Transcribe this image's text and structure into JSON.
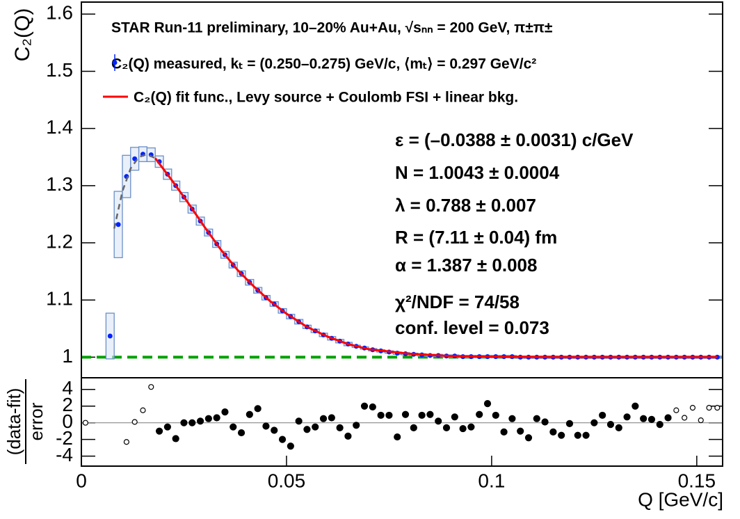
{
  "chart_data": [
    {
      "type": "scatter",
      "title": "STAR Run-11 preliminary, 10–20% Au+Au, √sₙₙ = 200 GeV, π±π±",
      "ylabel": "C₂(Q)",
      "xlim": [
        0,
        0.1563
      ],
      "ylim": [
        0.964,
        1.621
      ],
      "yticks": [
        1,
        1.1,
        1.2,
        1.3,
        1.4,
        1.5,
        1.6
      ],
      "reference": {
        "value": 1,
        "color": "#00a000"
      },
      "annotations": [
        "ε = (–0.0388 ± 0.0031) c/GeV",
        "N = 1.0043 ± 0.0004",
        "λ = 0.788 ± 0.007",
        "R = (7.11 ± 0.04) fm",
        "α = 1.387 ± 0.008",
        "χ²/NDF = 74/58",
        "conf. level = 0.073"
      ],
      "series": [
        {
          "name": "C₂(Q) measured, kₜ = (0.250–0.275) GeV/c, ⟨mₜ⟩ = 0.297 GeV/c²",
          "color": "#0022ff",
          "box_color": "#6a8fc8",
          "x": [
            0.007,
            0.009,
            0.011,
            0.013,
            0.015,
            0.017,
            0.019,
            0.021,
            0.023,
            0.025,
            0.027,
            0.029,
            0.031,
            0.033,
            0.035,
            0.037,
            0.039,
            0.041,
            0.043,
            0.045,
            0.047,
            0.049,
            0.051,
            0.053,
            0.055,
            0.057,
            0.059,
            0.061,
            0.063,
            0.065,
            0.067,
            0.069,
            0.071,
            0.073,
            0.075,
            0.077,
            0.079,
            0.081,
            0.083,
            0.085,
            0.087,
            0.089,
            0.091,
            0.093,
            0.095,
            0.097,
            0.099,
            0.101,
            0.103,
            0.105,
            0.107,
            0.109,
            0.111,
            0.113,
            0.115,
            0.117,
            0.119,
            0.121,
            0.123,
            0.125,
            0.127,
            0.129,
            0.131,
            0.133,
            0.135,
            0.137,
            0.139,
            0.141,
            0.143,
            0.145,
            0.147,
            0.149,
            0.151,
            0.153,
            0.155
          ],
          "values": [
            1.037,
            1.232,
            1.316,
            1.347,
            1.355,
            1.354,
            1.342,
            1.32,
            1.3,
            1.28,
            1.259,
            1.238,
            1.218,
            1.198,
            1.179,
            1.161,
            1.146,
            1.131,
            1.117,
            1.104,
            1.093,
            1.081,
            1.071,
            1.062,
            1.053,
            1.046,
            1.039,
            1.033,
            1.028,
            1.023,
            1.019,
            1.016,
            1.013,
            1.011,
            1.009,
            1.007,
            1.006,
            1.005,
            1.004,
            1.003,
            1.003,
            1.002,
            1.002,
            1.001,
            1.001,
            1.001,
            1.001,
            1.001,
            1.001,
            1.001,
            1,
            1,
            1,
            1,
            1,
            1,
            1,
            1,
            1,
            1,
            1,
            1,
            1,
            1,
            1,
            1,
            1,
            1,
            1,
            1,
            1,
            1,
            1,
            1,
            1
          ],
          "syst_errors": [
            0.04,
            0.058,
            0.037,
            0.02,
            0.013,
            0.012,
            0.01,
            0.009,
            0.008,
            0.008,
            0.007,
            0.007,
            0.006,
            0.006,
            0.006,
            0.005,
            0.005,
            0.005,
            0.005,
            0.004,
            0.004,
            0.004,
            0.004,
            0.004,
            0.003,
            0.003,
            0.003,
            0.003,
            0.003,
            0.003,
            0.002,
            0.002,
            0.002,
            0.002,
            0.002,
            0.002,
            0.002,
            0.002,
            0.002,
            0.002,
            0.002,
            0.002,
            0.002,
            0.002,
            0.002,
            0.002,
            0.002,
            0.002,
            0.002,
            0.002,
            0.002,
            0.002,
            0.002,
            0.002,
            0.002,
            0.002,
            0.002,
            0.002,
            0.002,
            0.002,
            0.002,
            0.002,
            0.002,
            0.002,
            0.002,
            0.002,
            0.002,
            0.002,
            0.002,
            0.002,
            0.002,
            0.002,
            0.002,
            0.002,
            0.002
          ]
        },
        {
          "name": "C₂(Q) fit func., Levy source + Coulomb FSI + linear bkg.",
          "color": "#ff0000",
          "x": [
            0.018,
            0.022,
            0.026,
            0.03,
            0.034,
            0.038,
            0.042,
            0.046,
            0.05,
            0.055,
            0.06,
            0.065,
            0.07,
            0.08,
            0.09,
            0.1,
            0.12,
            0.155
          ],
          "values": [
            1.348,
            1.31,
            1.27,
            1.228,
            1.188,
            1.153,
            1.124,
            1.098,
            1.076,
            1.053,
            1.036,
            1.023,
            1.014,
            1.006,
            1.002,
            1.001,
            1,
            1
          ]
        },
        {
          "color": "#666666",
          "dashed": true,
          "x": [
            0.008,
            0.01,
            0.012,
            0.014,
            0.016,
            0.018
          ],
          "values": [
            1.225,
            1.29,
            1.33,
            1.35,
            1.355,
            1.348
          ]
        }
      ]
    },
    {
      "type": "scatter",
      "ylabel": [
        "(data-fit)",
        "error"
      ],
      "xlabel": "Q [GeV/c]",
      "xlim": [
        0,
        0.1563
      ],
      "ylim": [
        -5.2,
        5.4
      ],
      "xticks": [
        0,
        0.05,
        0.1,
        0.15
      ],
      "yticks": [
        -4,
        -2,
        0,
        2,
        4
      ],
      "reference": {
        "value": 0,
        "color": "#888888"
      },
      "color": "#000000",
      "x": [
        0.001,
        0.011,
        0.013,
        0.015,
        0.017,
        0.019,
        0.021,
        0.023,
        0.025,
        0.027,
        0.029,
        0.031,
        0.033,
        0.035,
        0.037,
        0.039,
        0.041,
        0.043,
        0.045,
        0.047,
        0.049,
        0.051,
        0.053,
        0.055,
        0.057,
        0.059,
        0.061,
        0.063,
        0.065,
        0.067,
        0.069,
        0.071,
        0.073,
        0.075,
        0.077,
        0.079,
        0.081,
        0.083,
        0.085,
        0.087,
        0.089,
        0.091,
        0.093,
        0.095,
        0.097,
        0.099,
        0.101,
        0.103,
        0.105,
        0.107,
        0.109,
        0.111,
        0.113,
        0.115,
        0.117,
        0.119,
        0.121,
        0.123,
        0.125,
        0.127,
        0.129,
        0.131,
        0.133,
        0.135,
        0.137,
        0.139,
        0.141,
        0.143,
        0.145,
        0.147,
        0.149,
        0.151,
        0.153,
        0.155
      ],
      "values": [
        0,
        -2.3,
        0.1,
        1.5,
        4.3,
        -1.0,
        -0.5,
        -1.9,
        0,
        0,
        0.2,
        0.5,
        0.6,
        1.3,
        -0.5,
        -1.2,
        1.0,
        1.7,
        -0.4,
        -0.9,
        -2.0,
        -2.8,
        0.2,
        -0.8,
        -0.5,
        0.5,
        0.6,
        -0.6,
        -1.6,
        -0.3,
        2.0,
        1.9,
        0.9,
        0.9,
        -1.7,
        1.0,
        -0.6,
        0.9,
        1.0,
        0.2,
        -0.6,
        0.7,
        -0.7,
        -0.5,
        1.0,
        2.3,
        0.9,
        -1.1,
        0.5,
        -1.0,
        -1.8,
        0.5,
        0.1,
        -1.1,
        -1.5,
        -0.1,
        -1.5,
        -1.5,
        0,
        0.9,
        -0.2,
        -0.6,
        0.7,
        2.0,
        0.5,
        0.4,
        -0.2,
        0.6,
        1.5,
        0.6,
        1.8,
        0.3,
        1.8,
        1.8
      ],
      "open": [
        true,
        true,
        true,
        true,
        true,
        false,
        false,
        false,
        false,
        false,
        false,
        false,
        false,
        false,
        false,
        false,
        false,
        false,
        false,
        false,
        false,
        false,
        false,
        false,
        false,
        false,
        false,
        false,
        false,
        false,
        false,
        false,
        false,
        false,
        false,
        false,
        false,
        false,
        false,
        false,
        false,
        false,
        false,
        false,
        false,
        false,
        false,
        false,
        false,
        false,
        false,
        false,
        false,
        false,
        false,
        false,
        false,
        false,
        false,
        false,
        false,
        false,
        false,
        false,
        false,
        false,
        false,
        false,
        true,
        true,
        true,
        true,
        true,
        true
      ]
    }
  ]
}
